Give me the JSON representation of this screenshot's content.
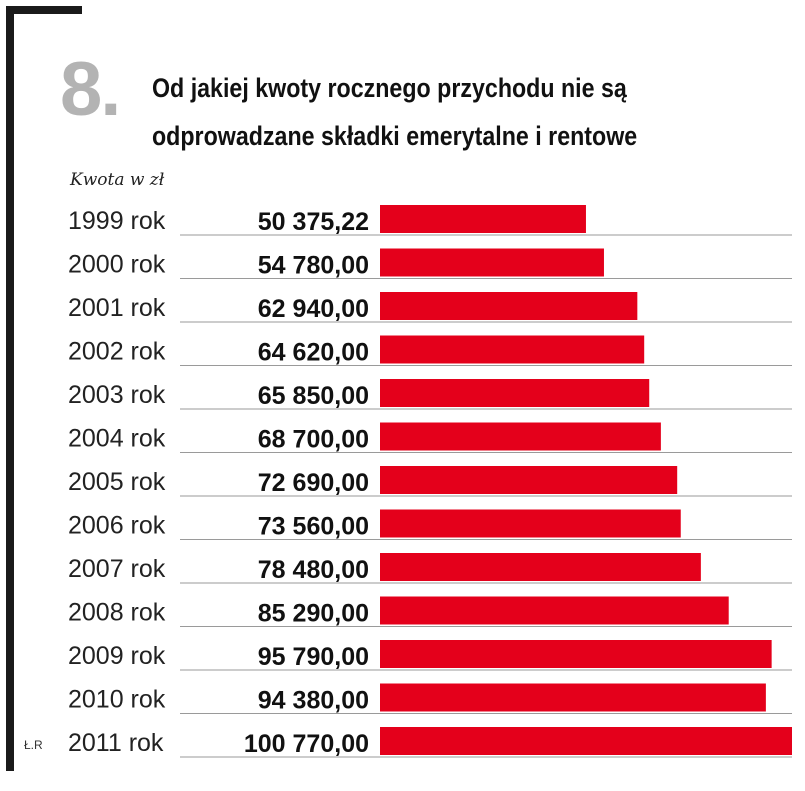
{
  "heading": {
    "number": "8.",
    "title_line1": "Od jakiej kwoty rocznego przychodu nie są",
    "title_line2": "odprowadzane składki emerytalne i rentowe"
  },
  "credit": "Ł.R",
  "chart_data": {
    "type": "bar",
    "orientation": "horizontal",
    "title": "Od jakiej kwoty rocznego przychodu nie są odprowadzane składki emerytalne i rentowe",
    "unit_label": "Kwota w zł",
    "categories": [
      "1999 rok",
      "2000 rok",
      "2001 rok",
      "2002 rok",
      "2003 rok",
      "2004 rok",
      "2005 rok",
      "2006 rok",
      "2007 rok",
      "2008 rok",
      "2009 rok",
      "2010 rok",
      "2011 rok"
    ],
    "values": [
      50375.22,
      54780.0,
      62940.0,
      64620.0,
      65850.0,
      68700.0,
      72690.0,
      73560.0,
      78480.0,
      85290.0,
      95790.0,
      94380.0,
      100770.0
    ],
    "value_labels": [
      "50 375,22",
      "54 780,00",
      "62 940,00",
      "64 620,00",
      "65 850,00",
      "68 700,00",
      "72 690,00",
      "73 560,00",
      "78 480,00",
      "85 290,00",
      "95 790,00",
      "94 380,00",
      "100 770,00"
    ],
    "bar_color": "#e4001b",
    "xlim": [
      0,
      100770
    ]
  }
}
